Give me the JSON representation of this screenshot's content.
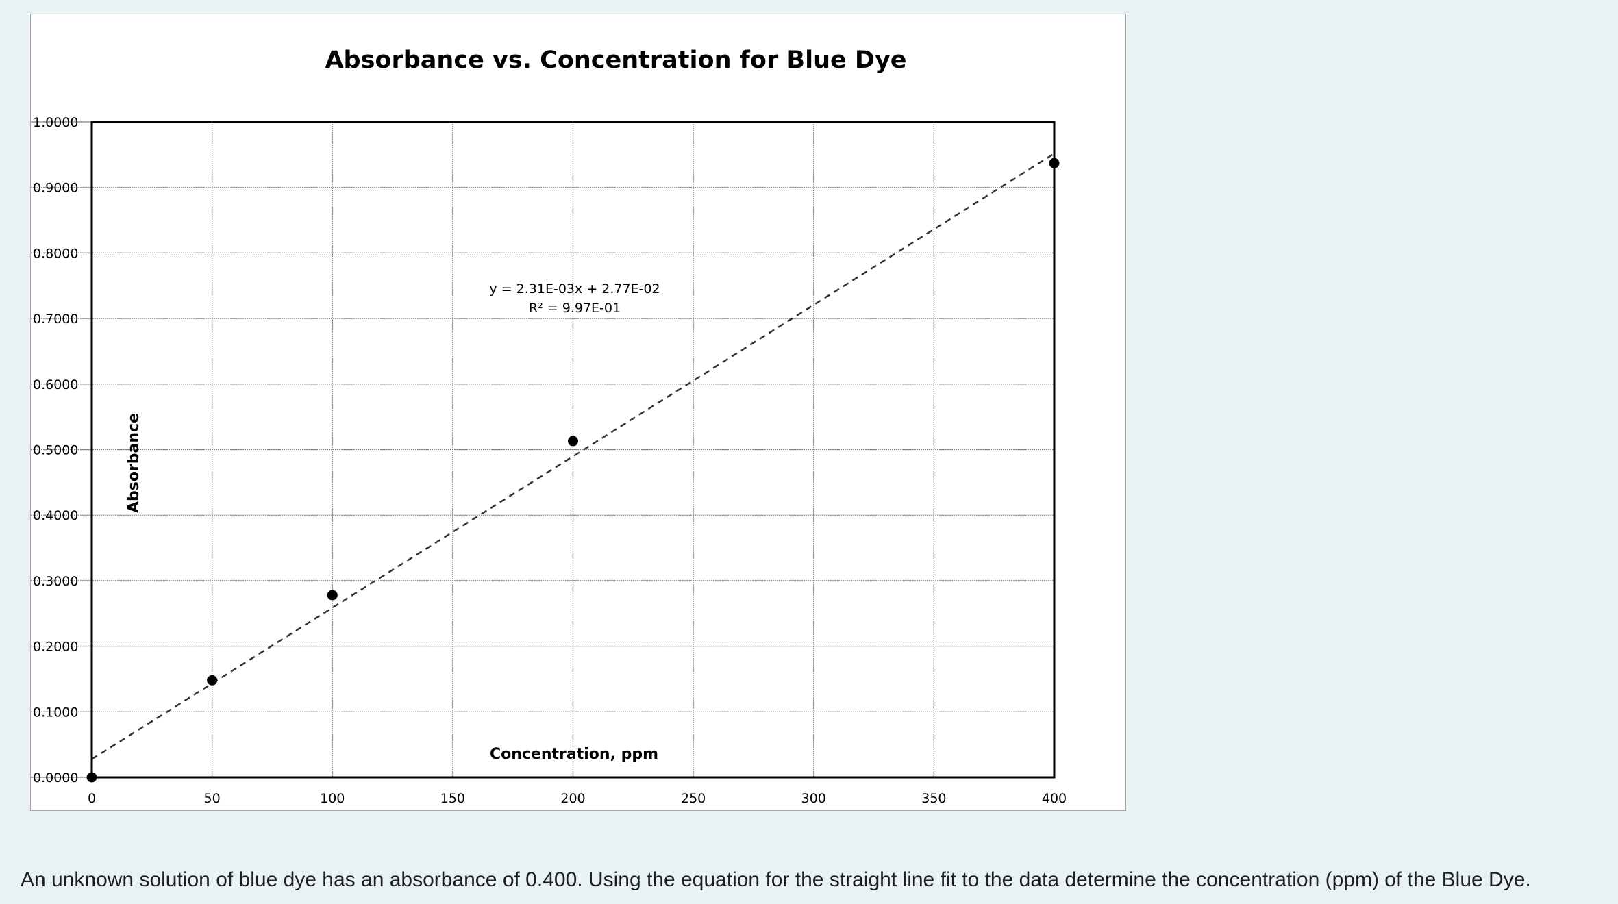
{
  "chart_data": {
    "type": "scatter",
    "title": "Absorbance vs. Concentration for Blue Dye",
    "xlabel": "Concentration, ppm",
    "ylabel": "Absorbance",
    "xlim": [
      0,
      400
    ],
    "ylim": [
      0,
      1
    ],
    "x_ticks": [
      0,
      50,
      100,
      150,
      200,
      250,
      300,
      350,
      400
    ],
    "x_tick_labels": [
      "0",
      "50",
      "100",
      "150",
      "200",
      "250",
      "300",
      "350",
      "400"
    ],
    "y_ticks": [
      0,
      0.1,
      0.2,
      0.3,
      0.4,
      0.5,
      0.6,
      0.7,
      0.8,
      0.9,
      1.0
    ],
    "y_tick_labels": [
      "0.0000",
      "0.1000",
      "0.2000",
      "0.3000",
      "0.4000",
      "0.5000",
      "0.6000",
      "0.7000",
      "0.8000",
      "0.9000",
      "1.0000"
    ],
    "grid": true,
    "series": [
      {
        "x": [
          0,
          50,
          100,
          200,
          400
        ],
        "y": [
          0.0,
          0.148,
          0.278,
          0.513,
          0.937
        ],
        "color": "#000000"
      }
    ],
    "trendline": {
      "type": "linear",
      "slope": 0.00231,
      "intercept": 0.0277,
      "style": "dashed",
      "equation": "y = 2.31E-03x + 2.77E-02",
      "r_squared": "R² = 9.97E-01"
    }
  },
  "question": "An unknown solution of blue dye has an absorbance of 0.400.  Using the equation for the straight line fit to the data determine the concentration (ppm) of the Blue Dye."
}
